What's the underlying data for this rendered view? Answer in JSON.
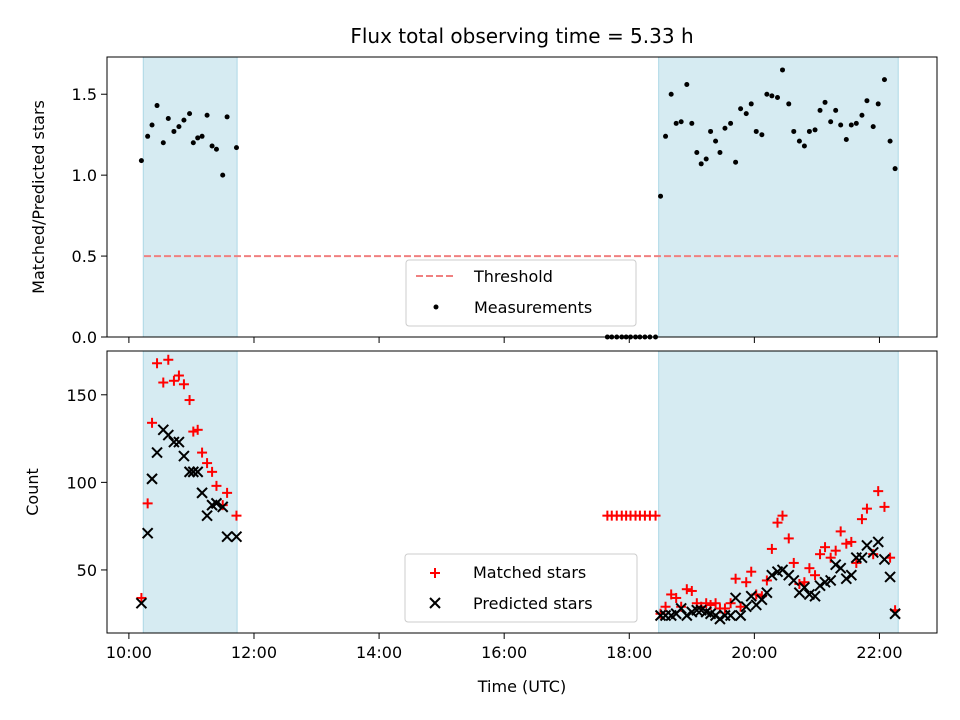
{
  "chart_data": {
    "title": "Flux total observing time = 5.33 h",
    "xlabel": "Time (UTC)",
    "xlim": [
      9.65,
      22.92
    ],
    "xticks": [
      {
        "value": 10,
        "label": "10:00"
      },
      {
        "value": 12,
        "label": "12:00"
      },
      {
        "value": 14,
        "label": "14:00"
      },
      {
        "value": 16,
        "label": "16:00"
      },
      {
        "value": 18,
        "label": "18:00"
      },
      {
        "value": 20,
        "label": "20:00"
      },
      {
        "value": 22,
        "label": "22:00"
      }
    ],
    "observing_windows": [
      [
        10.23,
        11.73
      ],
      [
        18.47,
        22.3
      ]
    ],
    "top": {
      "type": "scatter",
      "ylabel": "Matched/Predicted stars",
      "ylim": [
        0,
        1.73
      ],
      "yticks": [
        {
          "value": 0,
          "label": "0.0"
        },
        {
          "value": 0.5,
          "label": "0.5"
        },
        {
          "value": 1.0,
          "label": "1.0"
        },
        {
          "value": 1.5,
          "label": "1.5"
        }
      ],
      "threshold": 0.5,
      "threshold_color": "#f08080",
      "legend": {
        "position": "lower-center",
        "threshold_label": "Threshold",
        "measurements_label": "Measurements"
      },
      "measurements": {
        "x": [
          10.2,
          10.3,
          10.37,
          10.45,
          10.55,
          10.63,
          10.72,
          10.8,
          10.88,
          10.97,
          11.03,
          11.1,
          11.17,
          11.25,
          11.33,
          11.4,
          11.5,
          11.57,
          11.72,
          17.65,
          17.72,
          17.8,
          17.88,
          17.95,
          18.02,
          18.1,
          18.17,
          18.25,
          18.33,
          18.42,
          18.5,
          18.58,
          18.67,
          18.75,
          18.83,
          18.92,
          19.0,
          19.08,
          19.15,
          19.23,
          19.3,
          19.38,
          19.45,
          19.53,
          19.62,
          19.7,
          19.78,
          19.87,
          19.95,
          20.03,
          20.12,
          20.2,
          20.28,
          20.37,
          20.45,
          20.55,
          20.63,
          20.72,
          20.8,
          20.88,
          20.97,
          21.05,
          21.13,
          21.22,
          21.3,
          21.38,
          21.47,
          21.55,
          21.63,
          21.72,
          21.8,
          21.9,
          21.98,
          22.08,
          22.17,
          22.25
        ],
        "y": [
          1.09,
          1.24,
          1.31,
          1.43,
          1.2,
          1.35,
          1.27,
          1.3,
          1.34,
          1.38,
          1.2,
          1.23,
          1.24,
          1.37,
          1.18,
          1.16,
          1.0,
          1.36,
          1.17,
          0,
          0,
          0,
          0,
          0,
          0,
          0,
          0,
          0,
          0,
          0,
          0.87,
          1.24,
          1.5,
          1.32,
          1.33,
          1.56,
          1.32,
          1.14,
          1.07,
          1.1,
          1.27,
          1.21,
          1.14,
          1.29,
          1.32,
          1.08,
          1.41,
          1.38,
          1.44,
          1.27,
          1.25,
          1.5,
          1.49,
          1.48,
          1.65,
          1.44,
          1.27,
          1.21,
          1.18,
          1.27,
          1.28,
          1.4,
          1.45,
          1.33,
          1.4,
          1.31,
          1.22,
          1.31,
          1.32,
          1.37,
          1.46,
          1.3,
          1.44,
          1.59,
          1.21,
          1.04
        ]
      }
    },
    "bottom": {
      "type": "scatter",
      "ylabel": "Count",
      "ylim": [
        14,
        175
      ],
      "yticks": [
        {
          "value": 50,
          "label": "50"
        },
        {
          "value": 100,
          "label": "100"
        },
        {
          "value": 150,
          "label": "150"
        }
      ],
      "legend": {
        "position": "lower-center"
      },
      "series": [
        {
          "name": "Matched stars",
          "marker": "plus",
          "color": "#ff0000",
          "x": [
            10.2,
            10.3,
            10.37,
            10.45,
            10.55,
            10.63,
            10.72,
            10.8,
            10.88,
            10.97,
            11.03,
            11.1,
            11.17,
            11.25,
            11.33,
            11.4,
            11.5,
            11.57,
            11.72,
            17.65,
            17.72,
            17.8,
            17.88,
            17.95,
            18.02,
            18.1,
            18.17,
            18.25,
            18.33,
            18.42,
            18.5,
            18.58,
            18.67,
            18.75,
            18.83,
            18.92,
            19.0,
            19.08,
            19.15,
            19.23,
            19.3,
            19.38,
            19.45,
            19.53,
            19.62,
            19.7,
            19.78,
            19.87,
            19.95,
            20.03,
            20.12,
            20.2,
            20.28,
            20.37,
            20.45,
            20.55,
            20.63,
            20.72,
            20.8,
            20.88,
            20.97,
            21.05,
            21.13,
            21.22,
            21.3,
            21.38,
            21.47,
            21.55,
            21.63,
            21.72,
            21.8,
            21.9,
            21.98,
            22.08,
            22.17,
            22.25
          ],
          "y": [
            34,
            88,
            134,
            168,
            157,
            170,
            158,
            161,
            156,
            147,
            129,
            130,
            117,
            111,
            106,
            98,
            87,
            94,
            81,
            81,
            81,
            81,
            81,
            81,
            81,
            81,
            81,
            81,
            81,
            81,
            25,
            29,
            36,
            34,
            29,
            39,
            38,
            31,
            29,
            31,
            30,
            31,
            28,
            28,
            31,
            45,
            29,
            43,
            49,
            36,
            35,
            44,
            62,
            77,
            81,
            68,
            54,
            42,
            43,
            51,
            47,
            59,
            63,
            57,
            61,
            72,
            65,
            66,
            54,
            79,
            85,
            59,
            95,
            86,
            57,
            27
          ]
        },
        {
          "name": "Predicted stars",
          "marker": "x",
          "color": "#000000",
          "x": [
            10.2,
            10.3,
            10.37,
            10.45,
            10.55,
            10.63,
            10.72,
            10.8,
            10.88,
            10.97,
            11.03,
            11.1,
            11.17,
            11.25,
            11.33,
            11.4,
            11.5,
            11.57,
            11.72,
            18.5,
            18.58,
            18.67,
            18.75,
            18.83,
            18.92,
            19.0,
            19.08,
            19.15,
            19.23,
            19.3,
            19.38,
            19.45,
            19.53,
            19.62,
            19.7,
            19.78,
            19.87,
            19.95,
            20.03,
            20.12,
            20.2,
            20.28,
            20.37,
            20.45,
            20.55,
            20.63,
            20.72,
            20.8,
            20.88,
            20.97,
            21.05,
            21.13,
            21.22,
            21.3,
            21.38,
            21.47,
            21.55,
            21.63,
            21.72,
            21.8,
            21.9,
            21.98,
            22.08,
            22.17,
            22.25
          ],
          "y": [
            31,
            71,
            102,
            117,
            130,
            127,
            123,
            123,
            115,
            106,
            106,
            106,
            94,
            81,
            87,
            88,
            86,
            69,
            69,
            24,
            24,
            24,
            25,
            28,
            24,
            26,
            27,
            27,
            26,
            25,
            24,
            22,
            24,
            24,
            34,
            24,
            29,
            35,
            30,
            33,
            37,
            47,
            49,
            50,
            47,
            44,
            37,
            40,
            36,
            35,
            41,
            43,
            44,
            53,
            51,
            45,
            47,
            57,
            57,
            64,
            60,
            66,
            56,
            46,
            25
          ]
        }
      ]
    }
  }
}
